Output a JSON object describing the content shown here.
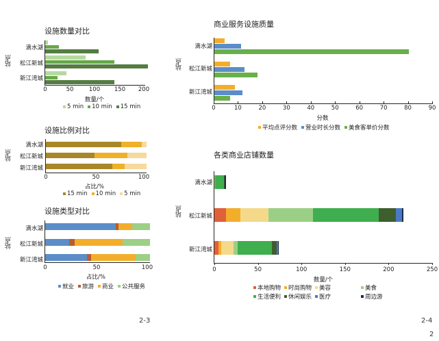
{
  "page_labels": {
    "left": "2-3",
    "right": "2-4",
    "corner": "2"
  },
  "colors": {
    "g5": "#b7d9a0",
    "g10": "#67a94a",
    "g15": "#547d41",
    "r15": "#a88728",
    "r10": "#f0b12a",
    "r5": "#f6d99c",
    "jiuye": "#5b8dc8",
    "lvyou": "#b85c2f",
    "shangye": "#f2ae2b",
    "gonggong": "#9dcf86",
    "q_pingjun": "#f2ae2b",
    "q_yingye": "#5b8dc8",
    "q_meishi": "#68b04a",
    "s_bendi": "#e0603a",
    "s_shishang": "#f2ae2b",
    "s_meirong": "#f5d98a",
    "s_meishi": "#9ccf86",
    "s_shenghuo": "#3fae4e",
    "s_xiuxian": "#3f5e2e",
    "s_yiliao": "#4b79c3",
    "s_zhoubian": "#1d2a4a"
  },
  "chart_data": [
    {
      "id": "facility_count",
      "type": "bar",
      "orientation": "horizontal",
      "title": "设施数量对比",
      "xlabel": "数量/个",
      "ylabel": "站点",
      "categories": [
        "滴水湖",
        "松江新城",
        "新江湾城"
      ],
      "xlim": [
        0,
        200
      ],
      "xticks": [
        "0",
        "50",
        "100",
        "150",
        "200"
      ],
      "series": [
        {
          "name": "5 min",
          "values": [
            5,
            81,
            42
          ]
        },
        {
          "name": "10 min",
          "values": [
            27,
            138,
            24
          ]
        },
        {
          "name": "15 min",
          "values": [
            107,
            205,
            138
          ]
        }
      ],
      "legend": [
        "5 min",
        "10 min",
        "15 min"
      ],
      "legend_position": "bottom"
    },
    {
      "id": "facility_ratio",
      "type": "bar",
      "orientation": "horizontal",
      "stacked": true,
      "title": "设施比例对比",
      "xlabel": "占比/%",
      "ylabel": "站点",
      "categories": [
        "滴水湖",
        "松江新城",
        "新江湾城"
      ],
      "xlim": [
        0,
        100
      ],
      "xticks": [
        "0",
        "50",
        "100"
      ],
      "series": [
        {
          "name": "15 min",
          "values": [
            75,
            48,
            66
          ]
        },
        {
          "name": "10 min",
          "values": [
            20,
            33,
            12
          ]
        },
        {
          "name": "5 min",
          "values": [
            5,
            19,
            22
          ]
        }
      ],
      "legend": [
        "15 min",
        "10 min",
        "5 min"
      ],
      "legend_position": "bottom"
    },
    {
      "id": "facility_type",
      "type": "bar",
      "orientation": "horizontal",
      "stacked": true,
      "title": "设施类型对比",
      "xlabel": "占比/%",
      "ylabel": "站点",
      "categories": [
        "滴水湖",
        "松江新城",
        "新江湾城"
      ],
      "xlim": [
        0,
        100
      ],
      "xticks": [
        "0",
        "50",
        "100"
      ],
      "series": [
        {
          "name": "就业",
          "values": [
            67,
            23,
            40
          ]
        },
        {
          "name": "旅游",
          "values": [
            3,
            5,
            4
          ]
        },
        {
          "name": "商业",
          "values": [
            13,
            46,
            42
          ]
        },
        {
          "name": "公共服务",
          "values": [
            17,
            26,
            14
          ]
        }
      ],
      "legend": [
        "就业",
        "旅游",
        "商业",
        "公共服务"
      ],
      "legend_position": "bottom"
    },
    {
      "id": "commercial_quality",
      "type": "bar",
      "orientation": "horizontal",
      "title": "商业服务设施质量",
      "xlabel": "分数",
      "ylabel": "站点",
      "categories": [
        "滴水湖",
        "松江新城",
        "新江湾城"
      ],
      "xlim": [
        0,
        90
      ],
      "xticks": [
        "0",
        "10",
        "20",
        "30",
        "40",
        "50",
        "60",
        "70",
        "80",
        "90"
      ],
      "series": [
        {
          "name": "平均点评分数",
          "values": [
            4.3,
            6.4,
            8.5
          ]
        },
        {
          "name": "营业时长分数",
          "values": [
            11,
            12.4,
            11.7
          ]
        },
        {
          "name": "美食客单价分数",
          "values": [
            80,
            17.8,
            6.6
          ]
        }
      ],
      "legend": [
        "平均点评分数",
        "营业时长分数",
        "美食客单价分数"
      ],
      "legend_position": "bottom"
    },
    {
      "id": "store_count",
      "type": "bar",
      "orientation": "horizontal",
      "stacked": true,
      "title": "各类商业店铺数量",
      "xlabel": "数量/个",
      "ylabel": "站点",
      "categories": [
        "滴水湖",
        "松江新城",
        "新江湾城"
      ],
      "xlim": [
        0,
        250
      ],
      "xticks": [
        "0",
        "50",
        "100",
        "150",
        "200",
        "250"
      ],
      "series": [
        {
          "name": "本地购物",
          "values": [
            0,
            13,
            5
          ]
        },
        {
          "name": "时尚购物",
          "values": [
            0,
            17,
            3
          ]
        },
        {
          "name": "美容",
          "values": [
            0,
            32,
            14
          ]
        },
        {
          "name": "美食",
          "values": [
            1,
            51,
            5
          ]
        },
        {
          "name": "生活便利",
          "values": [
            10,
            75,
            39
          ]
        },
        {
          "name": "休闲娱乐",
          "values": [
            1,
            20,
            5
          ]
        },
        {
          "name": "医疗",
          "values": [
            0,
            7,
            2
          ]
        },
        {
          "name": "周边游",
          "values": [
            1,
            1,
            1
          ]
        }
      ],
      "legend": [
        "本地购物",
        "时尚购物",
        "美容",
        "美食",
        "生活便利",
        "休闲娱乐",
        "医疗",
        "周边游"
      ],
      "legend_position": "bottom"
    }
  ]
}
